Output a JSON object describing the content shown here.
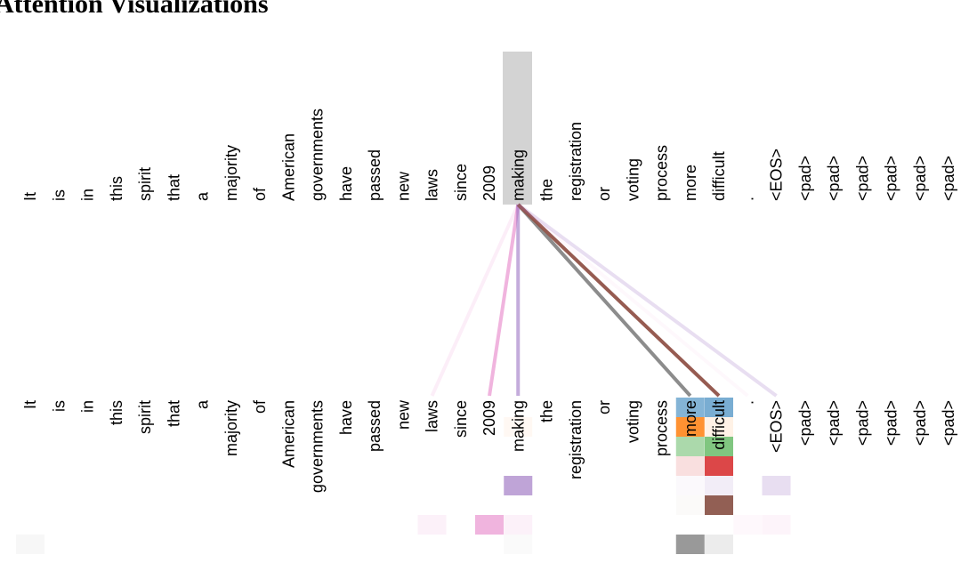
{
  "title": "Attention Visualizations",
  "tokens": [
    "It",
    "is",
    "in",
    "this",
    "spirit",
    "that",
    "a",
    "majority",
    "of",
    "American",
    "governments",
    "have",
    "passed",
    "new",
    "laws",
    "since",
    "2009",
    "making",
    "the",
    "registration",
    "or",
    "voting",
    "process",
    "more",
    "difficult",
    ".",
    "<EOS>",
    "<pad>",
    "<pad>",
    "<pad>",
    "<pad>",
    "<pad>",
    "<pad>"
  ],
  "selected_token_index": 17,
  "head_colors": [
    "#1f77b4",
    "#ff7f0e",
    "#2ca02c",
    "#d62728",
    "#9467bd",
    "#8c564b",
    "#e377c2",
    "#7f7f7f"
  ],
  "attention_lines": [
    {
      "to": 14,
      "head": 6,
      "strength": 0.12
    },
    {
      "to": 16,
      "head": 6,
      "strength": 0.55
    },
    {
      "to": 17,
      "head": 4,
      "strength": 0.55
    },
    {
      "to": 23,
      "head": 7,
      "strength": 0.9
    },
    {
      "to": 24,
      "head": 5,
      "strength": 0.95
    },
    {
      "to": 26,
      "head": 4,
      "strength": 0.22
    },
    {
      "to": 25,
      "head": 6,
      "strength": 0.05
    },
    {
      "to": 24,
      "head": 3,
      "strength": 0.06
    }
  ],
  "attention_cells": [
    {
      "token": 0,
      "head": 7,
      "strength": 0.06
    },
    {
      "token": 14,
      "head": 6,
      "strength": 0.1
    },
    {
      "token": 16,
      "head": 6,
      "strength": 0.55
    },
    {
      "token": 17,
      "head": 1,
      "strength": 0.05
    },
    {
      "token": 17,
      "head": 4,
      "strength": 0.6
    },
    {
      "token": 17,
      "head": 6,
      "strength": 0.1
    },
    {
      "token": 17,
      "head": 7,
      "strength": 0.04
    },
    {
      "token": 23,
      "head": 0,
      "strength": 0.55
    },
    {
      "token": 23,
      "head": 1,
      "strength": 0.85
    },
    {
      "token": 23,
      "head": 2,
      "strength": 0.4
    },
    {
      "token": 23,
      "head": 3,
      "strength": 0.15
    },
    {
      "token": 23,
      "head": 4,
      "strength": 0.04
    },
    {
      "token": 23,
      "head": 5,
      "strength": 0.03
    },
    {
      "token": 23,
      "head": 7,
      "strength": 0.8
    },
    {
      "token": 24,
      "head": 0,
      "strength": 0.6
    },
    {
      "token": 24,
      "head": 1,
      "strength": 0.1
    },
    {
      "token": 24,
      "head": 2,
      "strength": 0.6
    },
    {
      "token": 24,
      "head": 3,
      "strength": 0.85
    },
    {
      "token": 24,
      "head": 4,
      "strength": 0.12
    },
    {
      "token": 24,
      "head": 5,
      "strength": 0.95
    },
    {
      "token": 24,
      "head": 7,
      "strength": 0.15
    },
    {
      "token": 25,
      "head": 6,
      "strength": 0.05
    },
    {
      "token": 26,
      "head": 4,
      "strength": 0.22
    },
    {
      "token": 26,
      "head": 6,
      "strength": 0.08
    }
  ]
}
